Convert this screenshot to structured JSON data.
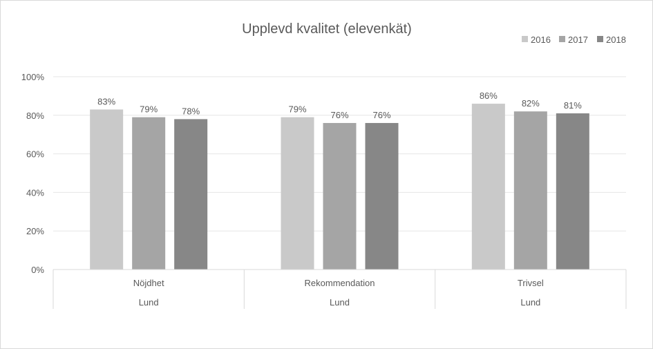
{
  "chart_data": {
    "type": "bar",
    "title": "Upplevd kvalitet (elevenkät)",
    "categories": [
      "Nöjdhet",
      "Rekommendation",
      "Trivsel"
    ],
    "group_labels": [
      "Lund",
      "Lund",
      "Lund"
    ],
    "series": [
      {
        "name": "2016",
        "color": "#c9c9c9",
        "values": [
          83,
          79,
          86
        ]
      },
      {
        "name": "2017",
        "color": "#a5a5a5",
        "values": [
          79,
          76,
          82
        ]
      },
      {
        "name": "2018",
        "color": "#878787",
        "values": [
          78,
          76,
          81
        ]
      }
    ],
    "value_suffix": "%",
    "ylim": [
      0,
      100
    ],
    "yticks": [
      0,
      20,
      40,
      60,
      80,
      100
    ],
    "ytick_labels": [
      "0%",
      "20%",
      "40%",
      "60%",
      "80%",
      "100%"
    ],
    "grid": true,
    "legend_position": "top-right"
  }
}
